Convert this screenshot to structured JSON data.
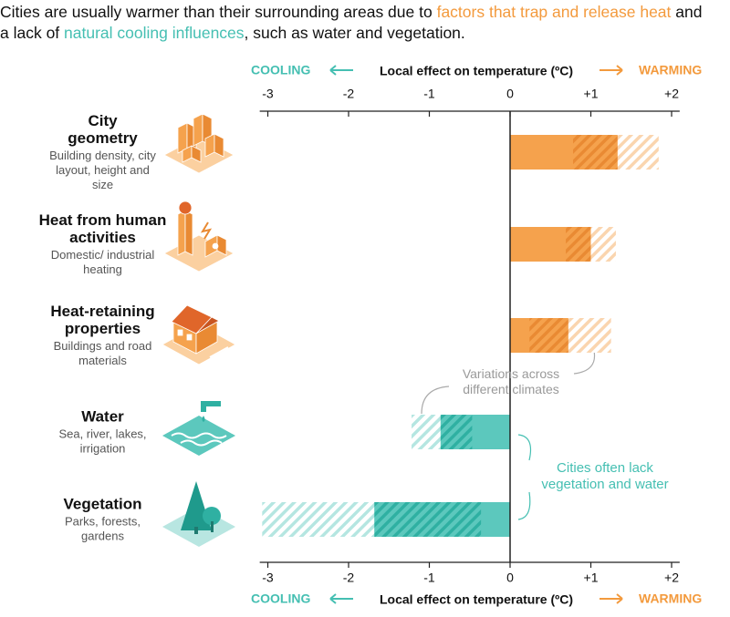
{
  "header": {
    "parts": [
      "Cities are usually warmer than their surrounding areas due to ",
      "factors that trap and release heat",
      " and a lack of ",
      "natural cooling influences",
      ", such as water and vegetation."
    ]
  },
  "chart_data": {
    "type": "range-bar",
    "axis_label": "Local effect on temperature (ºC)",
    "cooling_label": "COOLING",
    "warming_label": "WARMING",
    "cooling_color": "#45bfb2",
    "warming_color": "#f39a3d",
    "xlim": [
      -3.1,
      2.1
    ],
    "xticks": [
      -3,
      -2,
      -1,
      0,
      {
        "value": 1,
        "label": "+1"
      },
      {
        "value": 2,
        "label": "+2"
      }
    ],
    "factors": [
      {
        "name": "City geometry",
        "description": "Building density, city layout, height and size",
        "range": [
          0,
          1.84
        ],
        "likely": [
          0.78,
          1.33
        ],
        "color": "#f5a24d",
        "hatch_color": "#e98a33"
      },
      {
        "name": "Heat from human activities",
        "description": "Domestic/ industrial heating",
        "range": [
          0,
          1.31
        ],
        "likely": [
          0.69,
          1.0
        ],
        "color": "#f5a24d",
        "hatch_color": "#e98a33"
      },
      {
        "name": "Heat-retaining properties",
        "description": "Buildings and road materials",
        "range": [
          0,
          1.25
        ],
        "likely": [
          0.24,
          0.72
        ],
        "color": "#f5a24d",
        "hatch_color": "#e98a33"
      },
      {
        "name": "Water",
        "description": "Sea, river, lakes, irrigation",
        "range": [
          -1.22,
          0
        ],
        "likely": [
          -0.86,
          -0.47
        ],
        "color": "#5cc8bd",
        "hatch_color": "#2fb0a2"
      },
      {
        "name": "Vegetation",
        "description": "Parks, forests, gardens",
        "range": [
          -3.07,
          0
        ],
        "likely": [
          -1.68,
          -0.36
        ],
        "color": "#5cc8bd",
        "hatch_color": "#2fb0a2"
      }
    ],
    "annotations": [
      "Variations across different climates",
      "Cities often lack vegetation and water"
    ]
  }
}
